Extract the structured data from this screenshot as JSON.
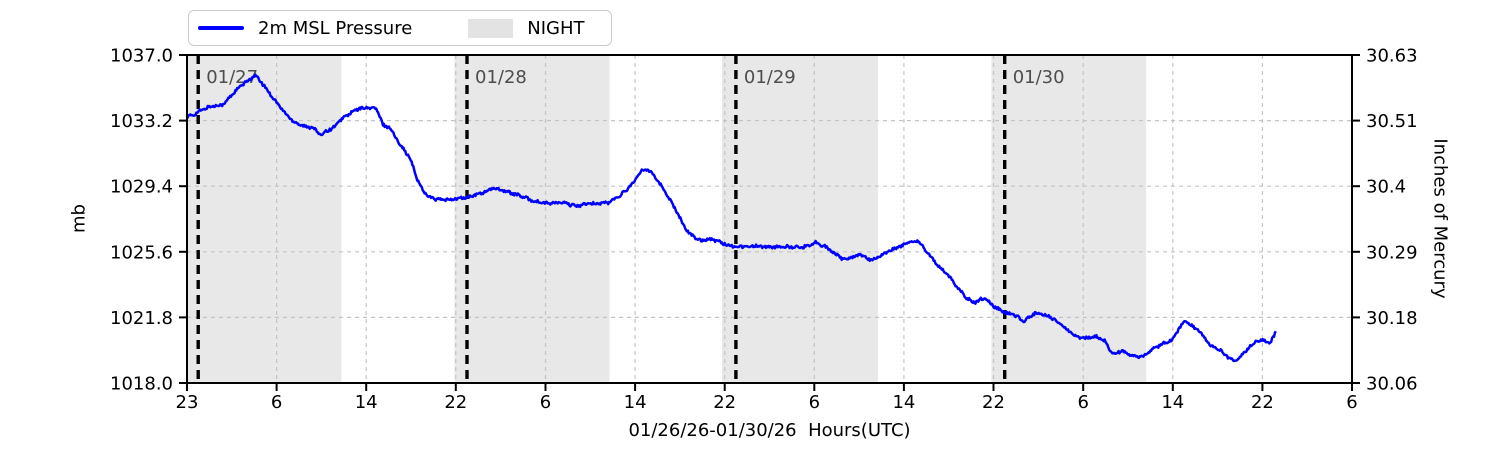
{
  "legend": {
    "pressure_label": "2m MSL Pressure",
    "night_label": "NIGHT"
  },
  "axes": {
    "left_label": "mb",
    "right_label": "Inches of Mercury",
    "x_label": "01/26/26-01/30/26  Hours(UTC)"
  },
  "chart_data": {
    "type": "line",
    "title": "",
    "xlabel": "01/26/26-01/30/26  Hours(UTC)",
    "ylabel": "mb",
    "ylabel_right": "Inches of Mercury",
    "legend_entries": [
      "2m MSL Pressure",
      "NIGHT"
    ],
    "legend_position": "top-left",
    "grid": true,
    "x_axis_hours_total": 104,
    "x_start": "01/26 23:00 UTC",
    "x_tick_labels": [
      "23",
      "6",
      "14",
      "22",
      "6",
      "14",
      "22",
      "6",
      "14",
      "22",
      "6",
      "14",
      "22",
      "6"
    ],
    "y_left_tick_labels": [
      "1037.0",
      "1033.2",
      "1029.4",
      "1025.6",
      "1021.8",
      "1018.0"
    ],
    "y_left_tick_values": [
      1037.0,
      1033.2,
      1029.4,
      1025.6,
      1021.8,
      1018.0
    ],
    "y_right_tick_labels": [
      "30.63",
      "30.51",
      "30.4",
      "30.29",
      "30.18",
      "30.06"
    ],
    "ylim": [
      1018.0,
      1037.0
    ],
    "y_grid_values": [
      1033.2,
      1029.4,
      1025.6,
      1021.8
    ],
    "day_lines": [
      {
        "hour": 1,
        "label": "01/27"
      },
      {
        "hour": 25,
        "label": "01/28"
      },
      {
        "hour": 49,
        "label": "01/29"
      },
      {
        "hour": 73,
        "label": "01/30"
      }
    ],
    "night_spans": [
      [
        0,
        13.77
      ],
      [
        23.89,
        37.72
      ],
      [
        47.76,
        61.68
      ],
      [
        71.8,
        85.63
      ]
    ],
    "line_color": "#0000ff",
    "night_color": "#e8e8e8",
    "grid_color": "#c4c4c4",
    "day_line_color": "#000000",
    "day_label_color": "#4d4d4d",
    "series": [
      {
        "name": "2m MSL Pressure",
        "units": "mb",
        "points_hours_vs_mb": [
          [
            0,
            1033.4
          ],
          [
            0.6,
            1033.55
          ],
          [
            1.3,
            1033.8
          ],
          [
            2.0,
            1034.0
          ],
          [
            2.9,
            1034.1
          ],
          [
            3.3,
            1034.15
          ],
          [
            4.0,
            1034.7
          ],
          [
            4.8,
            1035.2
          ],
          [
            5.5,
            1035.55
          ],
          [
            6.1,
            1035.8
          ],
          [
            6.6,
            1035.45
          ],
          [
            7.3,
            1034.85
          ],
          [
            8.0,
            1034.25
          ],
          [
            8.8,
            1033.6
          ],
          [
            9.5,
            1033.15
          ],
          [
            10.2,
            1032.95
          ],
          [
            10.7,
            1032.8
          ],
          [
            11.2,
            1032.85
          ],
          [
            11.9,
            1032.35
          ],
          [
            12.4,
            1032.6
          ],
          [
            13.0,
            1032.75
          ],
          [
            13.9,
            1033.35
          ],
          [
            14.9,
            1033.75
          ],
          [
            15.4,
            1033.9
          ],
          [
            16.1,
            1033.95
          ],
          [
            16.9,
            1033.9
          ],
          [
            17.5,
            1032.95
          ],
          [
            18.1,
            1032.8
          ],
          [
            18.6,
            1032.25
          ],
          [
            19.0,
            1031.85
          ],
          [
            19.4,
            1031.5
          ],
          [
            19.9,
            1031.0
          ],
          [
            20.2,
            1030.5
          ],
          [
            20.5,
            1029.9
          ],
          [
            20.8,
            1029.45
          ],
          [
            21.2,
            1029.05
          ],
          [
            21.7,
            1028.75
          ],
          [
            22.2,
            1028.65
          ],
          [
            23.0,
            1028.6
          ],
          [
            23.7,
            1028.65
          ],
          [
            25.1,
            1028.75
          ],
          [
            26.5,
            1029.05
          ],
          [
            27.5,
            1029.3
          ],
          [
            28.5,
            1029.1
          ],
          [
            29.7,
            1028.85
          ],
          [
            30.9,
            1028.55
          ],
          [
            32.1,
            1028.4
          ],
          [
            33.5,
            1028.45
          ],
          [
            34.7,
            1028.25
          ],
          [
            35.5,
            1028.35
          ],
          [
            36.5,
            1028.4
          ],
          [
            37.6,
            1028.45
          ],
          [
            38.3,
            1028.7
          ],
          [
            39.2,
            1029.15
          ],
          [
            40.0,
            1029.75
          ],
          [
            40.6,
            1030.3
          ],
          [
            41.1,
            1030.4
          ],
          [
            41.5,
            1030.2
          ],
          [
            42.2,
            1029.55
          ],
          [
            42.8,
            1028.95
          ],
          [
            43.3,
            1028.45
          ],
          [
            43.8,
            1027.8
          ],
          [
            44.3,
            1027.2
          ],
          [
            44.8,
            1026.7
          ],
          [
            45.3,
            1026.45
          ],
          [
            45.9,
            1026.25
          ],
          [
            46.6,
            1026.35
          ],
          [
            47.3,
            1026.25
          ],
          [
            48.4,
            1025.95
          ],
          [
            49.5,
            1025.9
          ],
          [
            50.8,
            1025.95
          ],
          [
            52.0,
            1025.85
          ],
          [
            53.4,
            1025.9
          ],
          [
            54.9,
            1025.85
          ],
          [
            56.2,
            1026.15
          ],
          [
            57.1,
            1025.85
          ],
          [
            58.6,
            1025.15
          ],
          [
            59.4,
            1025.3
          ],
          [
            60.1,
            1025.45
          ],
          [
            61.1,
            1025.1
          ],
          [
            62.1,
            1025.45
          ],
          [
            63.0,
            1025.75
          ],
          [
            64.6,
            1026.15
          ],
          [
            65.2,
            1026.25
          ],
          [
            66.0,
            1025.65
          ],
          [
            66.9,
            1024.9
          ],
          [
            67.7,
            1024.4
          ],
          [
            68.6,
            1023.7
          ],
          [
            69.5,
            1022.95
          ],
          [
            70.3,
            1022.65
          ],
          [
            71.2,
            1022.95
          ],
          [
            72.0,
            1022.45
          ],
          [
            72.8,
            1022.15
          ],
          [
            73.8,
            1021.95
          ],
          [
            74.7,
            1021.6
          ],
          [
            75.7,
            1022.05
          ],
          [
            76.6,
            1021.95
          ],
          [
            77.5,
            1021.65
          ],
          [
            78.4,
            1021.2
          ],
          [
            79.3,
            1020.7
          ],
          [
            80.2,
            1020.6
          ],
          [
            81.1,
            1020.7
          ],
          [
            82.0,
            1020.4
          ],
          [
            82.6,
            1019.65
          ],
          [
            83.4,
            1019.85
          ],
          [
            84.4,
            1019.55
          ],
          [
            85.3,
            1019.5
          ],
          [
            86.3,
            1020.0
          ],
          [
            87.2,
            1020.3
          ],
          [
            88.0,
            1020.5
          ],
          [
            88.6,
            1021.2
          ],
          [
            89.1,
            1021.55
          ],
          [
            89.7,
            1021.3
          ],
          [
            90.4,
            1021.0
          ],
          [
            91.3,
            1020.2
          ],
          [
            92.2,
            1019.9
          ],
          [
            93.0,
            1019.45
          ],
          [
            93.6,
            1019.25
          ],
          [
            94.5,
            1019.85
          ],
          [
            95.4,
            1020.4
          ],
          [
            96.2,
            1020.5
          ],
          [
            96.7,
            1020.3
          ],
          [
            97.2,
            1021.0
          ]
        ]
      }
    ]
  }
}
